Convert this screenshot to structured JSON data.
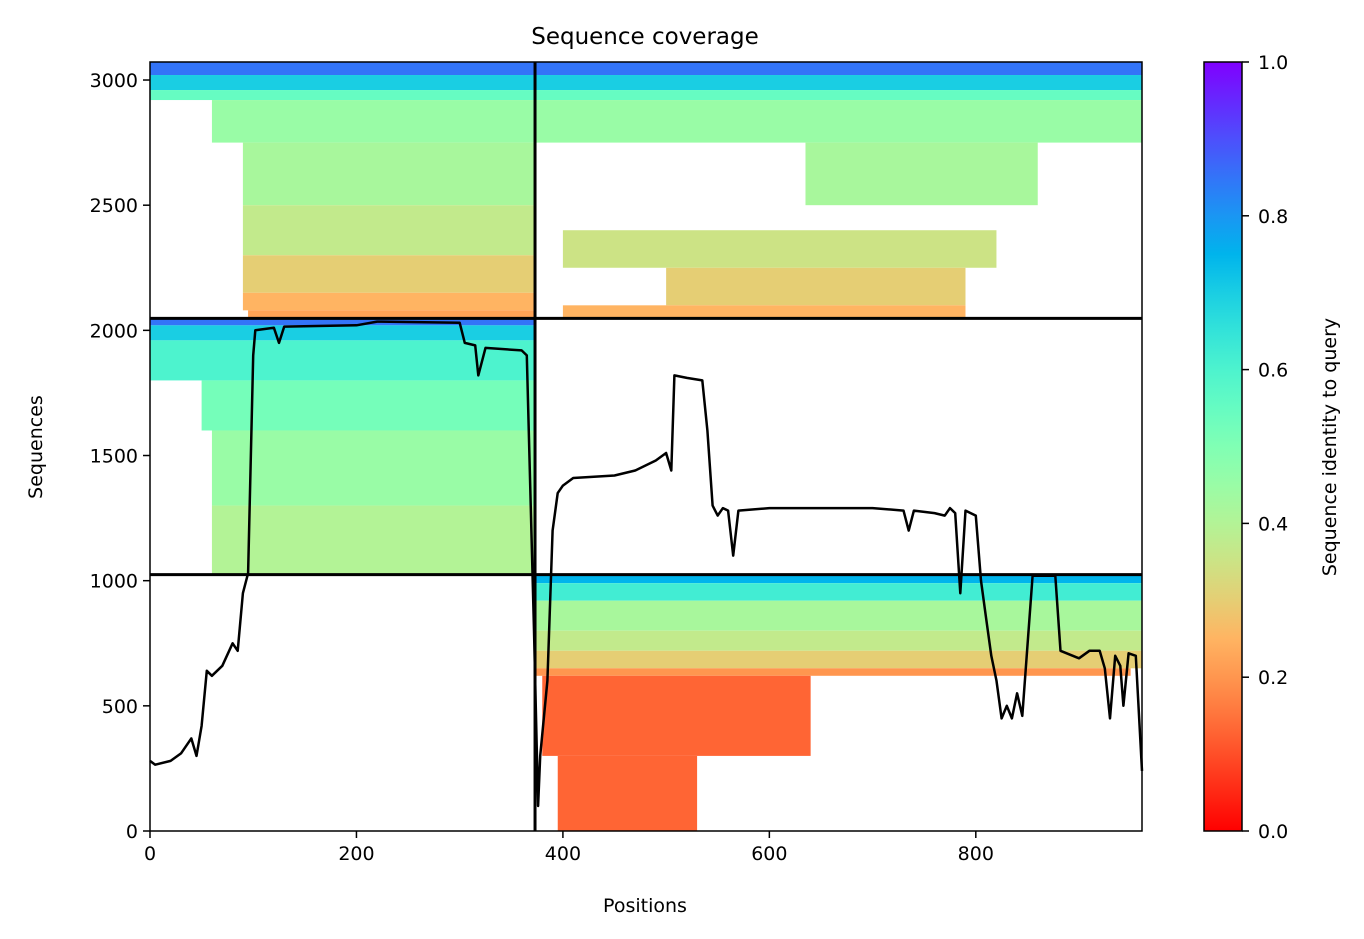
{
  "chart_data": {
    "type": "heatmap",
    "title": "Sequence coverage",
    "xlabel": "Positions",
    "ylabel": "Sequences",
    "xlim": [
      0,
      961
    ],
    "ylim": [
      0,
      3072
    ],
    "xticks": [
      0,
      200,
      400,
      600,
      800
    ],
    "yticks": [
      0,
      500,
      1000,
      1500,
      2000,
      2500,
      3000
    ],
    "cells": [
      {
        "x0": 0,
        "x1": 373,
        "y0": 3020,
        "y1": 3072,
        "value": 0.85
      },
      {
        "x0": 0,
        "x1": 373,
        "y0": 2960,
        "y1": 3020,
        "value": 0.7
      },
      {
        "x0": 0,
        "x1": 373,
        "y0": 2920,
        "y1": 2960,
        "value": 0.55
      },
      {
        "x0": 60,
        "x1": 373,
        "y0": 2750,
        "y1": 2920,
        "value": 0.45
      },
      {
        "x0": 90,
        "x1": 373,
        "y0": 2500,
        "y1": 2750,
        "value": 0.42
      },
      {
        "x0": 90,
        "x1": 373,
        "y0": 2300,
        "y1": 2500,
        "value": 0.37
      },
      {
        "x0": 90,
        "x1": 373,
        "y0": 2150,
        "y1": 2300,
        "value": 0.3
      },
      {
        "x0": 90,
        "x1": 373,
        "y0": 2080,
        "y1": 2150,
        "value": 0.25
      },
      {
        "x0": 95,
        "x1": 373,
        "y0": 2048,
        "y1": 2080,
        "value": 0.22
      },
      {
        "x0": 373,
        "x1": 961,
        "y0": 3020,
        "y1": 3072,
        "value": 0.85
      },
      {
        "x0": 373,
        "x1": 961,
        "y0": 2960,
        "y1": 3020,
        "value": 0.7
      },
      {
        "x0": 373,
        "x1": 961,
        "y0": 2920,
        "y1": 2960,
        "value": 0.55
      },
      {
        "x0": 373,
        "x1": 961,
        "y0": 2750,
        "y1": 2920,
        "value": 0.45
      },
      {
        "x0": 635,
        "x1": 860,
        "y0": 2500,
        "y1": 2750,
        "value": 0.42
      },
      {
        "x0": 400,
        "x1": 820,
        "y0": 2250,
        "y1": 2400,
        "value": 0.35
      },
      {
        "x0": 500,
        "x1": 790,
        "y0": 2100,
        "y1": 2250,
        "value": 0.3
      },
      {
        "x0": 400,
        "x1": 790,
        "y0": 2048,
        "y1": 2100,
        "value": 0.25
      },
      {
        "x0": 0,
        "x1": 373,
        "y0": 2020,
        "y1": 2048,
        "value": 0.85
      },
      {
        "x0": 0,
        "x1": 373,
        "y0": 1960,
        "y1": 2020,
        "value": 0.7
      },
      {
        "x0": 0,
        "x1": 373,
        "y0": 1800,
        "y1": 1960,
        "value": 0.6
      },
      {
        "x0": 50,
        "x1": 373,
        "y0": 1600,
        "y1": 1800,
        "value": 0.52
      },
      {
        "x0": 60,
        "x1": 373,
        "y0": 1300,
        "y1": 1600,
        "value": 0.45
      },
      {
        "x0": 60,
        "x1": 373,
        "y0": 1024,
        "y1": 1300,
        "value": 0.4
      },
      {
        "x0": 373,
        "x1": 961,
        "y0": 990,
        "y1": 1024,
        "value": 0.75
      },
      {
        "x0": 373,
        "x1": 961,
        "y0": 920,
        "y1": 990,
        "value": 0.62
      },
      {
        "x0": 373,
        "x1": 961,
        "y0": 800,
        "y1": 920,
        "value": 0.42
      },
      {
        "x0": 373,
        "x1": 961,
        "y0": 720,
        "y1": 800,
        "value": 0.37
      },
      {
        "x0": 373,
        "x1": 961,
        "y0": 650,
        "y1": 720,
        "value": 0.3
      },
      {
        "x0": 373,
        "x1": 950,
        "y0": 620,
        "y1": 650,
        "value": 0.2
      },
      {
        "x0": 380,
        "x1": 640,
        "y0": 300,
        "y1": 620,
        "value": 0.13
      },
      {
        "x0": 395,
        "x1": 530,
        "y0": 0,
        "y1": 300,
        "value": 0.13
      }
    ],
    "line": {
      "color": "#000000",
      "x": [
        0,
        5,
        20,
        30,
        40,
        45,
        50,
        55,
        60,
        70,
        80,
        85,
        90,
        95,
        100,
        102,
        120,
        125,
        130,
        200,
        220,
        300,
        305,
        315,
        318,
        325,
        360,
        365,
        372,
        376,
        378,
        385,
        390,
        395,
        400,
        410,
        450,
        470,
        490,
        500,
        505,
        508,
        520,
        535,
        540,
        545,
        550,
        555,
        560,
        565,
        570,
        600,
        700,
        730,
        735,
        740,
        760,
        770,
        775,
        780,
        785,
        790,
        800,
        805,
        810,
        815,
        820,
        825,
        830,
        835,
        840,
        845,
        855,
        877,
        882,
        900,
        910,
        920,
        925,
        930,
        935,
        940,
        943,
        948,
        955,
        961
      ],
      "values": [
        280,
        265,
        280,
        310,
        370,
        300,
        420,
        640,
        620,
        660,
        750,
        720,
        950,
        1030,
        1900,
        2000,
        2010,
        1950,
        2015,
        2020,
        2035,
        2030,
        1950,
        1940,
        1820,
        1930,
        1920,
        1900,
        800,
        100,
        300,
        600,
        1200,
        1350,
        1380,
        1410,
        1420,
        1440,
        1480,
        1510,
        1440,
        1820,
        1810,
        1800,
        1600,
        1300,
        1260,
        1290,
        1280,
        1100,
        1280,
        1290,
        1290,
        1280,
        1200,
        1280,
        1270,
        1260,
        1290,
        1270,
        950,
        1280,
        1260,
        1000,
        850,
        700,
        600,
        450,
        500,
        450,
        550,
        460,
        1020,
        1020,
        720,
        690,
        720,
        720,
        650,
        450,
        700,
        660,
        500,
        710,
        700,
        240
      ]
    },
    "hlines": [
      1024,
      2048
    ],
    "vlines": [
      373
    ],
    "colorbar": {
      "label": "Sequence identity to query",
      "cmap": "rainbow_r",
      "lim": [
        0,
        1
      ],
      "ticks": [
        {
          "value": 0,
          "label": "0.0"
        },
        0.2,
        0.4,
        0.6,
        0.8,
        {
          "value": 1,
          "label": "1.0"
        }
      ]
    }
  }
}
